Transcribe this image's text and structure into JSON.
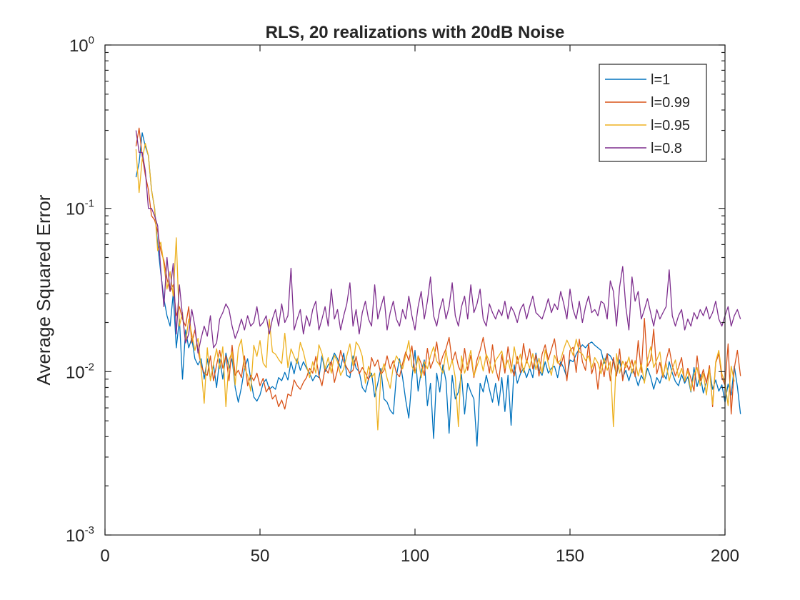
{
  "chart_data": {
    "type": "line",
    "title": "RLS, 20 realizations with 20dB Noise",
    "xlabel": "",
    "ylabel": "Average Squared Error",
    "xlim": [
      0,
      200
    ],
    "ylim": [
      0.001,
      1
    ],
    "yscale": "log",
    "grid": false,
    "legend_position": "top-right",
    "x_ticks": [
      0,
      50,
      100,
      150,
      200
    ],
    "y_ticks": [
      {
        "value": 0.001,
        "base": "10",
        "exp": "-3"
      },
      {
        "value": 0.01,
        "base": "10",
        "exp": "-2"
      },
      {
        "value": 0.1,
        "base": "10",
        "exp": "-1"
      },
      {
        "value": 1,
        "base": "10",
        "exp": "0"
      }
    ],
    "x_start": 10,
    "x_step": 1,
    "series": [
      {
        "name": "l=1",
        "color": "#0072BD",
        "values": [
          0.155,
          0.19,
          0.29,
          0.24,
          0.21,
          0.13,
          0.1,
          0.06,
          0.04,
          0.028,
          0.022,
          0.019,
          0.03,
          0.014,
          0.021,
          0.009,
          0.018,
          0.014,
          0.016,
          0.012,
          0.011,
          0.012,
          0.009,
          0.012,
          0.009,
          0.011,
          0.008,
          0.012,
          0.009,
          0.013,
          0.0105,
          0.012,
          0.008,
          0.0065,
          0.008,
          0.0105,
          0.012,
          0.009,
          0.007,
          0.0066,
          0.0072,
          0.0085,
          0.009,
          0.0078,
          0.0081,
          0.0078,
          0.0092,
          0.0088,
          0.0099,
          0.0089,
          0.0115,
          0.0097,
          0.012,
          0.0102,
          0.0115,
          0.0105,
          0.0098,
          0.0088,
          0.0095,
          0.0092,
          0.0125,
          0.01,
          0.011,
          0.0115,
          0.013,
          0.012,
          0.0105,
          0.013,
          0.0095,
          0.0092,
          0.0125,
          0.0105,
          0.01,
          0.008,
          0.0075,
          0.009,
          0.0098,
          0.007,
          0.0085,
          0.0105,
          0.0068,
          0.0065,
          0.0058,
          0.0055,
          0.0094,
          0.012,
          0.0092,
          0.0067,
          0.0052,
          0.009,
          0.0135,
          0.0076,
          0.01,
          0.0118,
          0.0062,
          0.0085,
          0.0039,
          0.0098,
          0.0075,
          0.011,
          0.0088,
          0.0042,
          0.0095,
          0.0068,
          0.0075,
          0.0096,
          0.0055,
          0.0085,
          0.0075,
          0.0068,
          0.0035,
          0.0085,
          0.0075,
          0.0095,
          0.0078,
          0.0065,
          0.0085,
          0.0062,
          0.0092,
          0.0057,
          0.0095,
          0.0047,
          0.011,
          0.0085,
          0.0097,
          0.0105,
          0.0092,
          0.0105,
          0.0092,
          0.013,
          0.0102,
          0.0095,
          0.0115,
          0.0098,
          0.0105,
          0.0108,
          0.0092,
          0.0115,
          0.0105,
          0.0092,
          0.0118,
          0.0115,
          0.0128,
          0.0138,
          0.0146,
          0.014,
          0.0148,
          0.0152,
          0.0145,
          0.014,
          0.0135,
          0.0112,
          0.0129,
          0.0125,
          0.0115,
          0.0095,
          0.0118,
          0.0092,
          0.0102,
          0.0088,
          0.0103,
          0.0095,
          0.0082,
          0.0095,
          0.0087,
          0.0105,
          0.0093,
          0.0078,
          0.0092,
          0.0085,
          0.0098,
          0.009,
          0.0115,
          0.0098,
          0.0087,
          0.0082,
          0.0096,
          0.0085,
          0.0093,
          0.0075,
          0.0106,
          0.0081,
          0.0096,
          0.0074,
          0.0086,
          0.0102,
          0.0078,
          0.0089,
          0.0076,
          0.0083,
          0.0065,
          0.0084,
          0.0072,
          0.0108,
          0.0081,
          0.0055
        ]
      },
      {
        "name": "l=0.99",
        "color": "#D95319",
        "values": [
          0.24,
          0.31,
          0.21,
          0.16,
          0.13,
          0.09,
          0.085,
          0.072,
          0.055,
          0.048,
          0.037,
          0.031,
          0.034,
          0.022,
          0.025,
          0.021,
          0.019,
          0.025,
          0.015,
          0.018,
          0.0135,
          0.011,
          0.0098,
          0.0095,
          0.0125,
          0.0088,
          0.011,
          0.0135,
          0.0105,
          0.0125,
          0.0088,
          0.0145,
          0.0095,
          0.0102,
          0.0092,
          0.0125,
          0.0082,
          0.0095,
          0.0088,
          0.0098,
          0.0082,
          0.0091,
          0.0075,
          0.0081,
          0.0068,
          0.0072,
          0.0061,
          0.0067,
          0.0059,
          0.0073,
          0.0071,
          0.0089,
          0.0082,
          0.0078,
          0.0086,
          0.0092,
          0.0105,
          0.0098,
          0.0124,
          0.0095,
          0.0082,
          0.0105,
          0.0098,
          0.0116,
          0.0086,
          0.0102,
          0.0135,
          0.0115,
          0.0106,
          0.0098,
          0.0102,
          0.0124,
          0.0097,
          0.0106,
          0.0098,
          0.0089,
          0.0122,
          0.0108,
          0.0118,
          0.0096,
          0.0102,
          0.0125,
          0.0104,
          0.0117,
          0.0098,
          0.0093,
          0.0112,
          0.0132,
          0.0117,
          0.0144,
          0.0098,
          0.0125,
          0.0112,
          0.0095,
          0.0139,
          0.0105,
          0.0118,
          0.0152,
          0.0109,
          0.0125,
          0.0138,
          0.0162,
          0.0115,
          0.0132,
          0.0108,
          0.0098,
          0.0139,
          0.0102,
          0.0126,
          0.0092,
          0.0118,
          0.0135,
          0.0162,
          0.0124,
          0.0098,
          0.0146,
          0.0105,
          0.0088,
          0.0127,
          0.0098,
          0.0142,
          0.0108,
          0.0094,
          0.0124,
          0.0099,
          0.0149,
          0.0113,
          0.0138,
          0.0104,
          0.0127,
          0.0094,
          0.0128,
          0.0146,
          0.0118,
          0.0137,
          0.0159,
          0.0116,
          0.0108,
          0.0127,
          0.0088,
          0.0135,
          0.0141,
          0.0099,
          0.0158,
          0.0115,
          0.0102,
          0.0149,
          0.0097,
          0.0113,
          0.0078,
          0.0118,
          0.0093,
          0.0129,
          0.0088,
          0.0122,
          0.0094,
          0.0138,
          0.0088,
          0.0115,
          0.0102,
          0.0118,
          0.0093,
          0.0155,
          0.0099,
          0.0212,
          0.0108,
          0.0118,
          0.0182,
          0.0097,
          0.0114,
          0.0092,
          0.0117,
          0.0139,
          0.0109,
          0.0094,
          0.0106,
          0.0122,
          0.0087,
          0.0105,
          0.0091,
          0.0076,
          0.0125,
          0.0088,
          0.0103,
          0.0085,
          0.0109,
          0.0061,
          0.0113,
          0.0129,
          0.0092,
          0.0083,
          0.0148,
          0.0055,
          0.0105,
          0.0135,
          0.0094
        ]
      },
      {
        "name": "l=0.95",
        "color": "#EDB120",
        "values": [
          0.23,
          0.125,
          0.2,
          0.25,
          0.21,
          0.13,
          0.1,
          0.055,
          0.062,
          0.045,
          0.032,
          0.041,
          0.029,
          0.066,
          0.019,
          0.023,
          0.015,
          0.021,
          0.017,
          0.0135,
          0.016,
          0.0105,
          0.0064,
          0.014,
          0.0088,
          0.0112,
          0.0138,
          0.0104,
          0.0142,
          0.0061,
          0.0118,
          0.0132,
          0.0083,
          0.0138,
          0.0158,
          0.0106,
          0.0095,
          0.0076,
          0.0145,
          0.0124,
          0.0155,
          0.0113,
          0.0106,
          0.0209,
          0.0132,
          0.0128,
          0.0119,
          0.0112,
          0.0172,
          0.0106,
          0.0138,
          0.0124,
          0.0112,
          0.0151,
          0.0132,
          0.0109,
          0.0092,
          0.0115,
          0.0098,
          0.0146,
          0.0129,
          0.0104,
          0.0122,
          0.0098,
          0.0126,
          0.0115,
          0.0095,
          0.0104,
          0.0125,
          0.0148,
          0.0109,
          0.0152,
          0.0142,
          0.0124,
          0.0085,
          0.0108,
          0.0092,
          0.0098,
          0.0044,
          0.0096,
          0.0112,
          0.0091,
          0.0079,
          0.0108,
          0.0125,
          0.0115,
          0.0104,
          0.0126,
          0.0155,
          0.0108,
          0.0098,
          0.0124,
          0.0092,
          0.0115,
          0.0104,
          0.0125,
          0.0142,
          0.0116,
          0.0109,
          0.0098,
          0.0135,
          0.0102,
          0.0118,
          0.0092,
          0.0046,
          0.0125,
          0.0098,
          0.0112,
          0.0135,
          0.0094,
          0.0108,
          0.0124,
          0.0101,
          0.0128,
          0.0115,
          0.0098,
          0.0117,
          0.0125,
          0.0134,
          0.0105,
          0.0118,
          0.0098,
          0.0142,
          0.0112,
          0.0128,
          0.0099,
          0.0118,
          0.0105,
          0.0129,
          0.0103,
          0.0121,
          0.0098,
          0.0136,
          0.0112,
          0.0095,
          0.0126,
          0.0113,
          0.0118,
          0.0138,
          0.0156,
          0.0142,
          0.0126,
          0.0158,
          0.0132,
          0.0128,
          0.0117,
          0.0125,
          0.0105,
          0.0122,
          0.0113,
          0.0097,
          0.0121,
          0.0102,
          0.0115,
          0.0046,
          0.0129,
          0.0098,
          0.0116,
          0.0106,
          0.0123,
          0.0098,
          0.0117,
          0.0094,
          0.0112,
          0.0085,
          0.0118,
          0.0142,
          0.0106,
          0.0118,
          0.0132,
          0.0094,
          0.0112,
          0.0088,
          0.0104,
          0.0118,
          0.0092,
          0.0105,
          0.0088,
          0.0101,
          0.0076,
          0.0095,
          0.0106,
          0.0082,
          0.0098,
          0.0072,
          0.0104,
          0.0063,
          0.0115,
          0.0135,
          0.0097,
          0.0086,
          0.0062,
          0.0108,
          0.0087
        ]
      },
      {
        "name": "l=0.8",
        "color": "#7E2F8E",
        "values": [
          0.3,
          0.22,
          0.22,
          0.17,
          0.1,
          0.1,
          0.09,
          0.078,
          0.042,
          0.025,
          0.05,
          0.031,
          0.046,
          0.017,
          0.034,
          0.022,
          0.015,
          0.017,
          0.024,
          0.019,
          0.013,
          0.016,
          0.019,
          0.0165,
          0.022,
          0.014,
          0.015,
          0.021,
          0.023,
          0.026,
          0.024,
          0.019,
          0.016,
          0.018,
          0.021,
          0.018,
          0.022,
          0.019,
          0.02,
          0.025,
          0.019,
          0.02,
          0.022,
          0.017,
          0.021,
          0.024,
          0.019,
          0.026,
          0.02,
          0.022,
          0.043,
          0.018,
          0.021,
          0.024,
          0.017,
          0.022,
          0.019,
          0.024,
          0.027,
          0.018,
          0.021,
          0.025,
          0.019,
          0.032,
          0.021,
          0.024,
          0.018,
          0.022,
          0.026,
          0.035,
          0.019,
          0.024,
          0.017,
          0.023,
          0.027,
          0.021,
          0.019,
          0.034,
          0.021,
          0.025,
          0.029,
          0.018,
          0.023,
          0.027,
          0.021,
          0.019,
          0.024,
          0.021,
          0.029,
          0.022,
          0.018,
          0.025,
          0.031,
          0.021,
          0.027,
          0.038,
          0.022,
          0.019,
          0.024,
          0.028,
          0.021,
          0.025,
          0.035,
          0.022,
          0.019,
          0.025,
          0.029,
          0.021,
          0.034,
          0.023,
          0.026,
          0.032,
          0.021,
          0.019,
          0.026,
          0.023,
          0.021,
          0.024,
          0.022,
          0.027,
          0.021,
          0.025,
          0.023,
          0.02,
          0.024,
          0.026,
          0.021,
          0.025,
          0.029,
          0.023,
          0.022,
          0.021,
          0.024,
          0.028,
          0.023,
          0.026,
          0.024,
          0.031,
          0.026,
          0.021,
          0.032,
          0.024,
          0.021,
          0.027,
          0.02,
          0.025,
          0.029,
          0.023,
          0.024,
          0.022,
          0.027,
          0.026,
          0.021,
          0.036,
          0.031,
          0.019,
          0.033,
          0.044,
          0.025,
          0.018,
          0.038,
          0.027,
          0.031,
          0.021,
          0.024,
          0.028,
          0.023,
          0.019,
          0.024,
          0.021,
          0.023,
          0.025,
          0.042,
          0.022,
          0.019,
          0.022,
          0.024,
          0.018,
          0.021,
          0.019,
          0.023,
          0.021,
          0.024,
          0.022,
          0.025,
          0.021,
          0.023,
          0.027,
          0.021,
          0.019,
          0.022,
          0.025,
          0.019,
          0.022,
          0.024,
          0.021
        ]
      }
    ]
  }
}
